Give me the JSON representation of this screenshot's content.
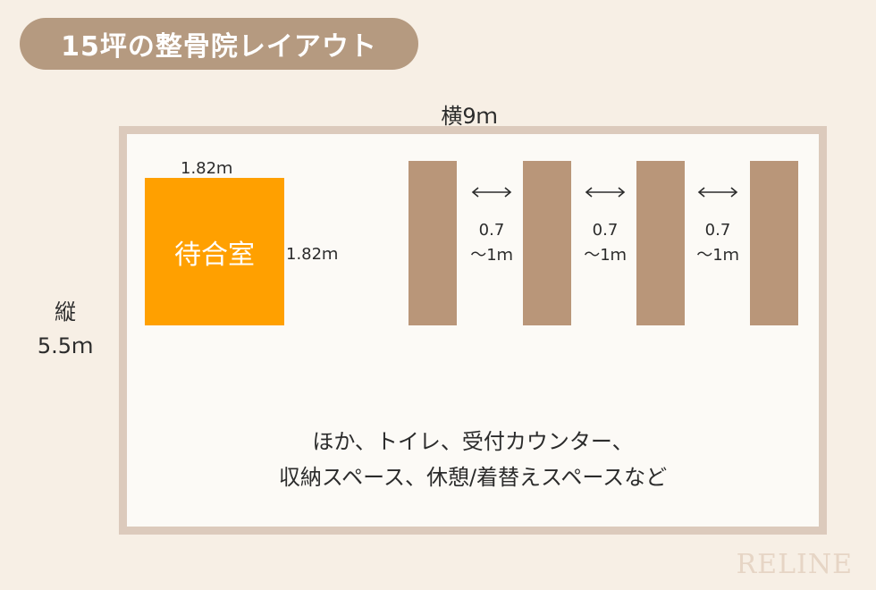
{
  "title": "15坪の整骨院レイアウト",
  "dimensions": {
    "width_label": "横9ｍ",
    "height_label_line1": "縦",
    "height_label_line2": "5.5ｍ"
  },
  "waiting_room": {
    "label": "待合室",
    "width_label": "1.82ｍ",
    "height_label": "1.82ｍ",
    "color": "#ffa000"
  },
  "bed_gaps": [
    {
      "line1": "0.7",
      "line2": "～1ｍ"
    },
    {
      "line1": "0.7",
      "line2": "～1ｍ"
    },
    {
      "line1": "0.7",
      "line2": "～1ｍ"
    }
  ],
  "note": {
    "line1": "ほか、トイレ、受付カウンター、",
    "line2": "収納スペース、休憩/着替えスペースなど"
  },
  "logo": "RELINE",
  "colors": {
    "background": "#f7efe5",
    "title_pill": "#b59a80",
    "room_border": "#dccabc",
    "bed": "#b99679"
  }
}
